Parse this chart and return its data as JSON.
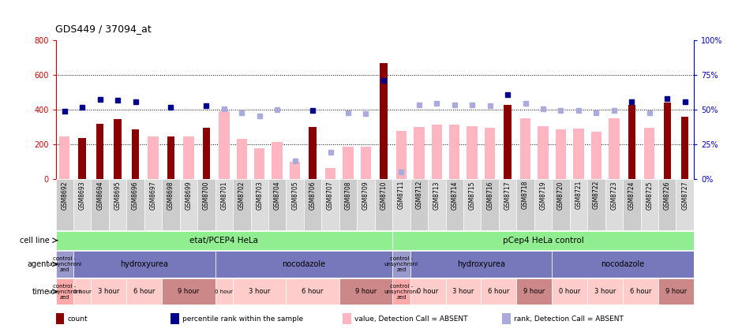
{
  "title": "GDS449 / 37094_at",
  "samples": [
    "GSM8692",
    "GSM8693",
    "GSM8694",
    "GSM8695",
    "GSM8696",
    "GSM8697",
    "GSM8698",
    "GSM8699",
    "GSM8700",
    "GSM8701",
    "GSM8702",
    "GSM8703",
    "GSM8704",
    "GSM8705",
    "GSM8706",
    "GSM8707",
    "GSM8708",
    "GSM8709",
    "GSM8710",
    "GSM8711",
    "GSM8712",
    "GSM8713",
    "GSM8714",
    "GSM8715",
    "GSM8716",
    "GSM8717",
    "GSM8718",
    "GSM8719",
    "GSM8720",
    "GSM8721",
    "GSM8722",
    "GSM8723",
    "GSM8724",
    "GSM8725",
    "GSM8726",
    "GSM8727"
  ],
  "count_values": [
    null,
    237,
    320,
    347,
    285,
    null,
    247,
    null,
    295,
    null,
    null,
    null,
    null,
    null,
    300,
    null,
    null,
    null,
    670,
    null,
    null,
    null,
    null,
    null,
    null,
    430,
    null,
    null,
    null,
    null,
    null,
    null,
    430,
    null,
    440,
    360
  ],
  "value_absent": [
    247,
    null,
    null,
    null,
    null,
    247,
    null,
    247,
    null,
    390,
    234,
    180,
    213,
    102,
    null,
    65,
    185,
    187,
    null,
    280,
    300,
    315,
    315,
    305,
    295,
    null,
    350,
    305,
    285,
    290,
    275,
    350,
    null,
    295,
    null,
    null
  ],
  "rank_present": [
    391,
    416,
    459,
    457,
    448,
    null,
    416,
    null,
    425,
    null,
    null,
    null,
    null,
    null,
    396,
    null,
    null,
    null,
    567,
    null,
    null,
    null,
    null,
    null,
    null,
    486,
    null,
    null,
    null,
    null,
    null,
    null,
    448,
    null,
    462,
    448
  ],
  "rank_absent": [
    null,
    null,
    null,
    null,
    null,
    null,
    null,
    null,
    null,
    403,
    383,
    363,
    399,
    105,
    null,
    157,
    383,
    376,
    null,
    42,
    430,
    435,
    430,
    430,
    425,
    null,
    435,
    405,
    398,
    395,
    383,
    395,
    null,
    383,
    null,
    null
  ],
  "ylim_left": [
    0,
    800
  ],
  "ylim_right": [
    0,
    100
  ],
  "yticks_left": [
    0,
    200,
    400,
    600,
    800
  ],
  "yticks_right": [
    0,
    25,
    50,
    75,
    100
  ],
  "left_axis_color": "#cc0000",
  "right_axis_color": "#0000cc",
  "bar_dark_color": "#8B0000",
  "bar_light_color": "#FFB6C1",
  "dot_dark_color": "#00008B",
  "dot_light_color": "#AAAADD",
  "bg_color": "#ffffff",
  "grid_color": "#000000",
  "cell_line_color": "#90EE90",
  "agent_ctrl_color": "#9999CC",
  "agent_main_color": "#7777BB",
  "time_ctrl_color": "#FFAAAA",
  "time_light_color": "#FFCCCC",
  "time_dark_color": "#CC8888",
  "legend_items": [
    {
      "color": "#8B0000",
      "label": "count"
    },
    {
      "color": "#00008B",
      "label": "percentile rank within the sample"
    },
    {
      "color": "#FFB6C1",
      "label": "value, Detection Call = ABSENT"
    },
    {
      "color": "#AAAADD",
      "label": "rank, Detection Call = ABSENT"
    }
  ]
}
